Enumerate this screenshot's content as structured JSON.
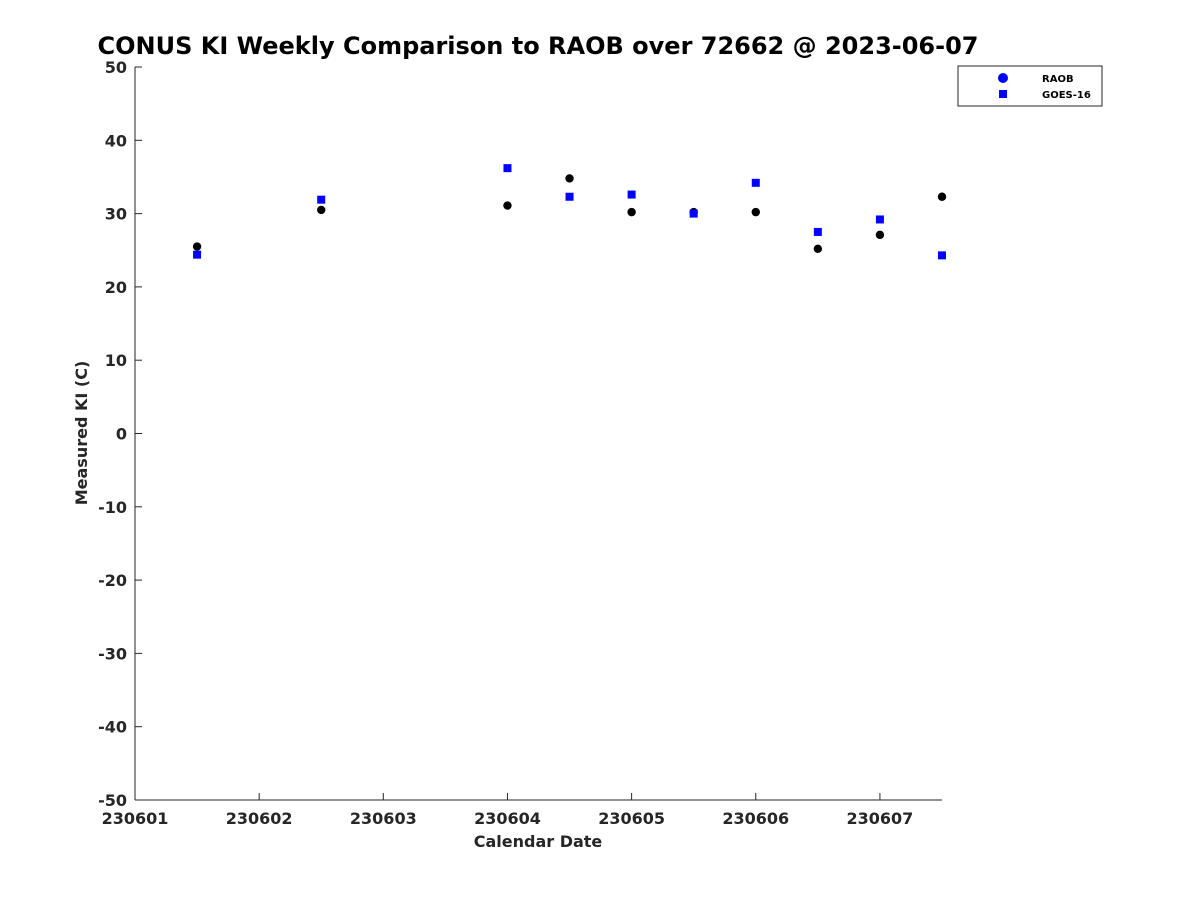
{
  "chart_data": {
    "type": "scatter",
    "title": "CONUS KI Weekly Comparison to RAOB over 72662 @ 2023-06-07",
    "xlabel": "Calendar Date",
    "ylabel": "Measured KI (C)",
    "xlim": [
      230601,
      230607.5
    ],
    "ylim": [
      -50,
      50
    ],
    "x_ticks": [
      230601,
      230602,
      230603,
      230604,
      230605,
      230606,
      230607
    ],
    "x_tick_labels": [
      "230601",
      "230602",
      "230603",
      "230604",
      "230605",
      "230606",
      "230607"
    ],
    "y_ticks": [
      -50,
      -40,
      -30,
      -20,
      -10,
      0,
      10,
      20,
      30,
      40,
      50
    ],
    "y_tick_labels": [
      "-50",
      "-40",
      "-30",
      "-20",
      "-10",
      "0",
      "10",
      "20",
      "30",
      "40",
      "50"
    ],
    "grid": false,
    "legend_position": "top-right",
    "series": [
      {
        "name": "RAOB",
        "marker": "circle",
        "color": "#000000",
        "legend_color": "#0000ff",
        "x": [
          230601.5,
          230602.5,
          230604,
          230604.5,
          230605,
          230605.5,
          230606,
          230606.5,
          230607,
          230607.5
        ],
        "y": [
          25.5,
          30.5,
          31.1,
          34.8,
          30.2,
          30.2,
          30.2,
          25.2,
          27.1,
          32.3
        ]
      },
      {
        "name": "GOES-16",
        "marker": "square",
        "color": "#0000ff",
        "legend_color": "#0000ff",
        "x": [
          230601.5,
          230602.5,
          230604,
          230604.5,
          230605,
          230605.5,
          230606,
          230606.5,
          230607,
          230607.5
        ],
        "y": [
          24.4,
          31.9,
          36.2,
          32.3,
          32.6,
          30.0,
          34.2,
          27.5,
          29.2,
          24.3
        ]
      }
    ]
  }
}
